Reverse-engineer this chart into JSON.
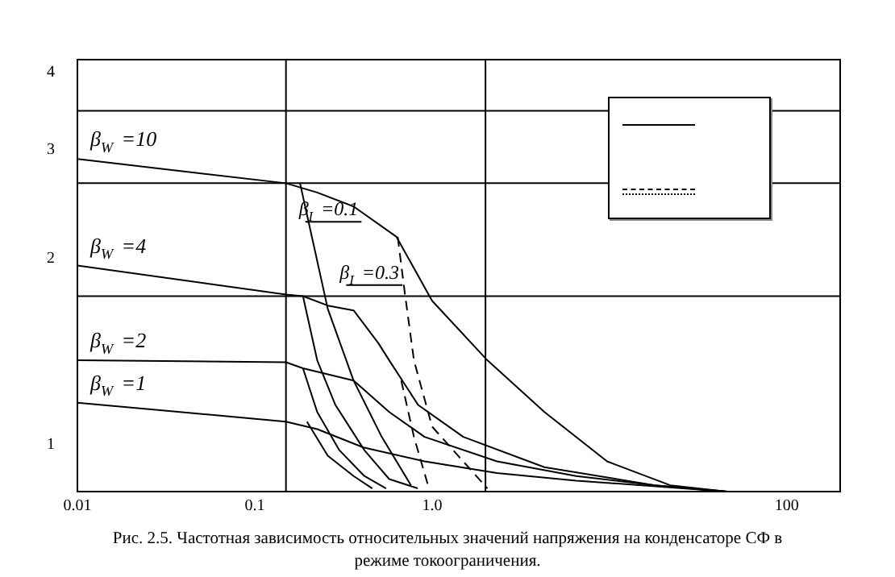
{
  "chart_data": {
    "type": "line",
    "log": "xy",
    "xlim": [
      0.01,
      200
    ],
    "ylim": [
      0.84,
      4.2
    ],
    "xticks": [
      0.01,
      0.1,
      {
        "value": 1,
        "label": "1.0"
      },
      100
    ],
    "yticks": [
      1,
      2,
      3,
      4
    ],
    "grid": false,
    "marker": "none",
    "line_style": "solid",
    "series": [
      {
        "name": "β$_{W}$ =10",
        "color": "#000000",
        "x": [
          0.01,
          0.15,
          0.225,
          0.361,
          0.63,
          1.0,
          2.05,
          4.3,
          9.7,
          22,
          46
        ],
        "values": [
          2.9,
          2.65,
          2.56,
          2.43,
          2.17,
          1.71,
          1.37,
          1.13,
          0.94,
          0.86,
          0.84
        ]
      },
      {
        "name": "β$_{W}$ =4",
        "color": "#000000",
        "x": [
          0.01,
          0.15,
          0.187,
          0.258,
          0.361,
          0.498,
          0.573,
          0.834,
          1.5,
          4.3,
          18,
          46
        ],
        "values": [
          1.95,
          1.75,
          1.74,
          1.68,
          1.65,
          1.46,
          1.37,
          1.16,
          1.03,
          0.92,
          0.86,
          0.84
        ]
      },
      {
        "name": "β$_{W}$ =2",
        "color": "#000000",
        "x": [
          0.01,
          0.15,
          0.187,
          0.361,
          0.573,
          0.907,
          2.32,
          6.5,
          18,
          46
        ],
        "values": [
          1.37,
          1.36,
          1.33,
          1.27,
          1.13,
          1.03,
          0.94,
          0.89,
          0.86,
          0.84
        ]
      },
      {
        "name": "β$_{W}$ =1",
        "color": "#000000",
        "x": [
          0.01,
          0.15,
          0.225,
          0.41,
          0.907,
          2.32,
          6.5,
          46
        ],
        "values": [
          1.17,
          1.09,
          1.06,
          0.99,
          0.94,
          0.9,
          0.875,
          0.84
        ]
      },
      {
        "color": "#000000",
        "x": [
          0.18,
          0.207,
          0.258,
          0.361,
          0.52,
          0.76
        ],
        "values": [
          2.65,
          2.21,
          1.66,
          1.27,
          1.03,
          0.86
        ]
      },
      {
        "color": "#000000",
        "x": [
          0.187,
          0.225,
          0.285,
          0.415,
          0.573,
          0.83
        ],
        "values": [
          1.74,
          1.37,
          1.16,
          0.98,
          0.88,
          0.85
        ]
      },
      {
        "color": "#000000",
        "x": [
          0.187,
          0.225,
          0.3,
          0.415,
          0.55
        ],
        "values": [
          1.33,
          1.13,
          0.98,
          0.89,
          0.85
        ]
      },
      {
        "color": "#000000",
        "x": [
          0.197,
          0.258,
          0.361,
          0.46
        ],
        "values": [
          1.09,
          0.96,
          0.89,
          0.85
        ]
      },
      {
        "color": "#000000",
        "line_style": "dashed",
        "x": [
          0.64,
          0.7,
          0.79,
          1.0,
          2.05
        ],
        "values": [
          2.17,
          1.77,
          1.37,
          1.07,
          0.85
        ]
      },
      {
        "color": "#000000",
        "line_style": "dashed",
        "x": [
          0.67,
          0.79,
          0.96
        ],
        "values": [
          1.27,
          1.03,
          0.85
        ]
      }
    ],
    "ref_lines": [
      {
        "axis": "y",
        "value": 3.47
      },
      {
        "axis": "y",
        "value": 2.65
      },
      {
        "axis": "y",
        "value": 1.74
      },
      {
        "axis": "x",
        "value": 0.15
      },
      {
        "axis": "x",
        "value": 2
      }
    ],
    "annotations": [
      {
        "text": "β$_{I}$ =0.1",
        "x": 0.4,
        "y": 2.38
      },
      {
        "text": "β$_{I}$ =0.3",
        "x": 0.68,
        "y": 1.88
      },
      "Рис. 2.5. Частотная зависимость относительных значений напряжения на конденсаторе СФ в режиме токоограничения."
    ]
  }
}
